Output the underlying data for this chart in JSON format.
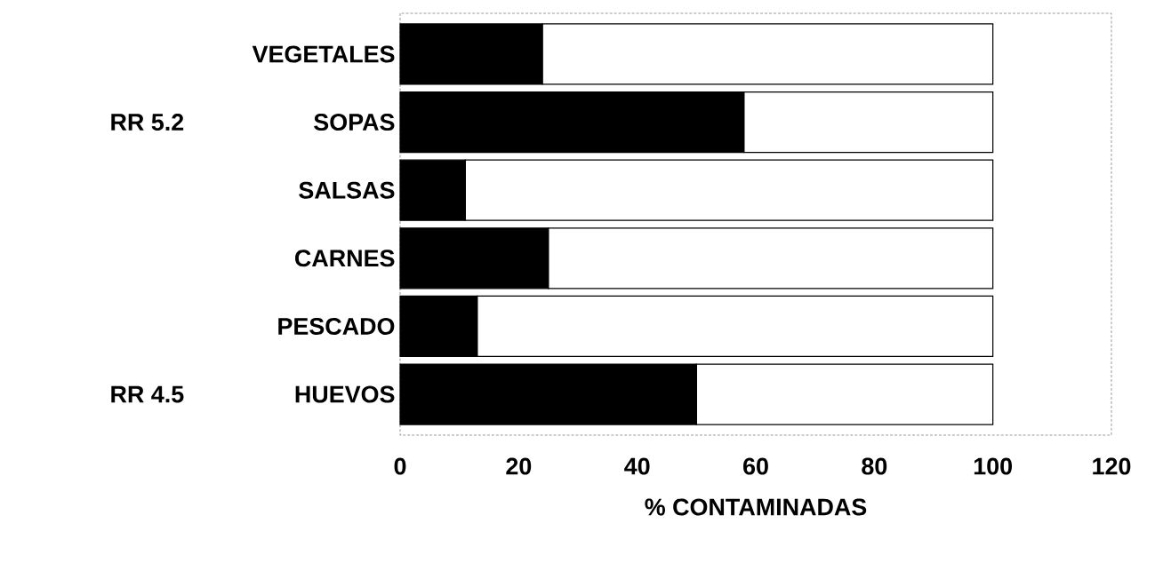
{
  "chart_data": {
    "type": "bar",
    "orientation": "horizontal",
    "stacked": true,
    "categories": [
      "VEGETALES",
      "SOPAS",
      "SALSAS",
      "CARNES",
      "PESCADO",
      "HUEVOS"
    ],
    "series": [
      {
        "color": "#000000",
        "values": [
          24,
          58,
          11,
          25,
          13,
          50
        ]
      },
      {
        "color": "#ffffff",
        "values": [
          76,
          42,
          89,
          75,
          87,
          50
        ]
      }
    ],
    "xlabel": "% CONTAMINADAS",
    "xlim": [
      0,
      120
    ],
    "xticks": [
      0,
      20,
      40,
      60,
      80,
      100,
      120
    ],
    "annotations": [
      "RR 5.2",
      "RR 4.5"
    ],
    "grid": false
  }
}
